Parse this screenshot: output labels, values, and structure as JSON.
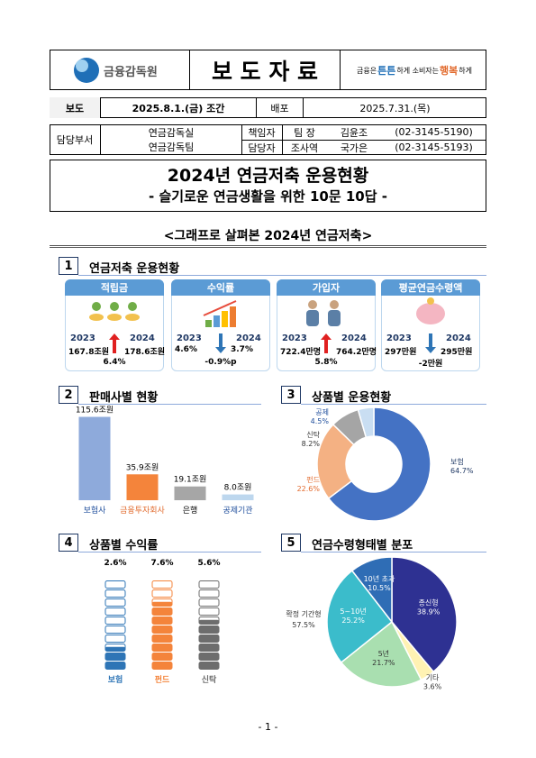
{
  "header": {
    "logo": "금융감독원",
    "title": "보 도 자 료",
    "slogan": [
      "금융은",
      "튼튼",
      "하게 소비자는",
      "행복",
      "하게"
    ]
  },
  "info": {
    "release_label": "보도",
    "release": "2025.8.1.(금) 조간",
    "distribution_label": "배포",
    "distribution": "2025.7.31.(목)",
    "dept_label": "담당부서",
    "depts": [
      "연금감독실",
      "연금감독팀"
    ],
    "contacts": [
      {
        "role": "책임자",
        "title": "팀 장",
        "name": "김윤조",
        "phone": "(02-3145-5190)"
      },
      {
        "role": "담당자",
        "title": "조사역",
        "name": "국가은",
        "phone": "(02-3145-5193)"
      }
    ]
  },
  "title": "2024년 연금저축 운용현황",
  "subtitle": "- 슬기로운 연금생활을 위한 10문 10답 -",
  "section_heading": "<그래프로 살펴본 2024년 연금저축>",
  "sections": [
    {
      "number": "1",
      "title": "연금저축 운용현황",
      "cards": [
        {
          "label": "적립금",
          "color": "#5b9bd5",
          "year_a": "2023",
          "value_a": "167.8조원",
          "year_b": "2024",
          "value_b": "178.6조원",
          "change": "6.4%"
        },
        {
          "label": "수익률",
          "color": "#5b9bd5",
          "year_a": "2023",
          "value_a": "4.6%",
          "year_b": "2024",
          "value_b": "3.7%",
          "change": "-0.9%p"
        },
        {
          "label": "가입자",
          "color": "#5b9bd5",
          "year_a": "2023",
          "value_a": "722.4만명",
          "year_b": "2024",
          "value_b": "764.2만명",
          "change": "5.8%"
        },
        {
          "label": "평균연금수령액",
          "color": "#5b9bd5",
          "year_a": "2023",
          "value_a": "297만원",
          "year_b": "2024",
          "value_b": "295만원",
          "change": "-2만원"
        }
      ]
    },
    {
      "number": "2",
      "title": "판매사별 현황",
      "chart": {
        "type": "bar",
        "categories": [
          "보험사",
          "금융투자회사",
          "은행",
          "공제기관"
        ],
        "values": [
          115.6,
          35.9,
          19.1,
          8.0
        ],
        "value_labels": [
          "115.6조원",
          "35.9조원",
          "19.1조원",
          "8.0조원"
        ],
        "colors": [
          "#8eaadb",
          "#f4843b",
          "#a6a6a6",
          "#bdd7ee"
        ]
      }
    },
    {
      "number": "3",
      "title": "상품별 운용현황",
      "chart": {
        "type": "donut",
        "categories": [
          "보험",
          "펀드",
          "신탁",
          "공제"
        ],
        "values": [
          64.7,
          22.6,
          8.2,
          4.5
        ],
        "value_labels": [
          "64.7%",
          "22.6%",
          "8.2%",
          "4.5%"
        ],
        "colors": [
          "#4472c4",
          "#f4b183",
          "#a5a5a5",
          "#c9def2"
        ]
      }
    },
    {
      "number": "4",
      "title": "상품별 수익률",
      "chart": {
        "type": "stack",
        "categories": [
          "보험",
          "펀드",
          "신탁"
        ],
        "values": [
          2.6,
          7.6,
          5.6
        ],
        "value_labels": [
          "2.6%",
          "7.6%",
          "5.6%"
        ],
        "colors": [
          "#2e75b6",
          "#f4843b",
          "#6d6d6d"
        ]
      }
    },
    {
      "number": "5",
      "title": "연금수령형태별 분포",
      "chart": {
        "type": "pie",
        "categories": [
          "종신형",
          "기타",
          "5년",
          "5~10년",
          "10년 초과"
        ],
        "values": [
          38.9,
          3.6,
          21.7,
          25.2,
          10.5
        ],
        "value_labels": [
          "38.9%",
          "3.6%",
          "21.7%",
          "25.2%",
          "10.5%"
        ],
        "colors": [
          "#2e3192",
          "#fff2b3",
          "#a9dfb0",
          "#3bbccb",
          "#2f6db5"
        ],
        "annotation": {
          "label": "확정 기간형",
          "value": "57.5%"
        }
      }
    }
  ],
  "footer": "- 1 -"
}
